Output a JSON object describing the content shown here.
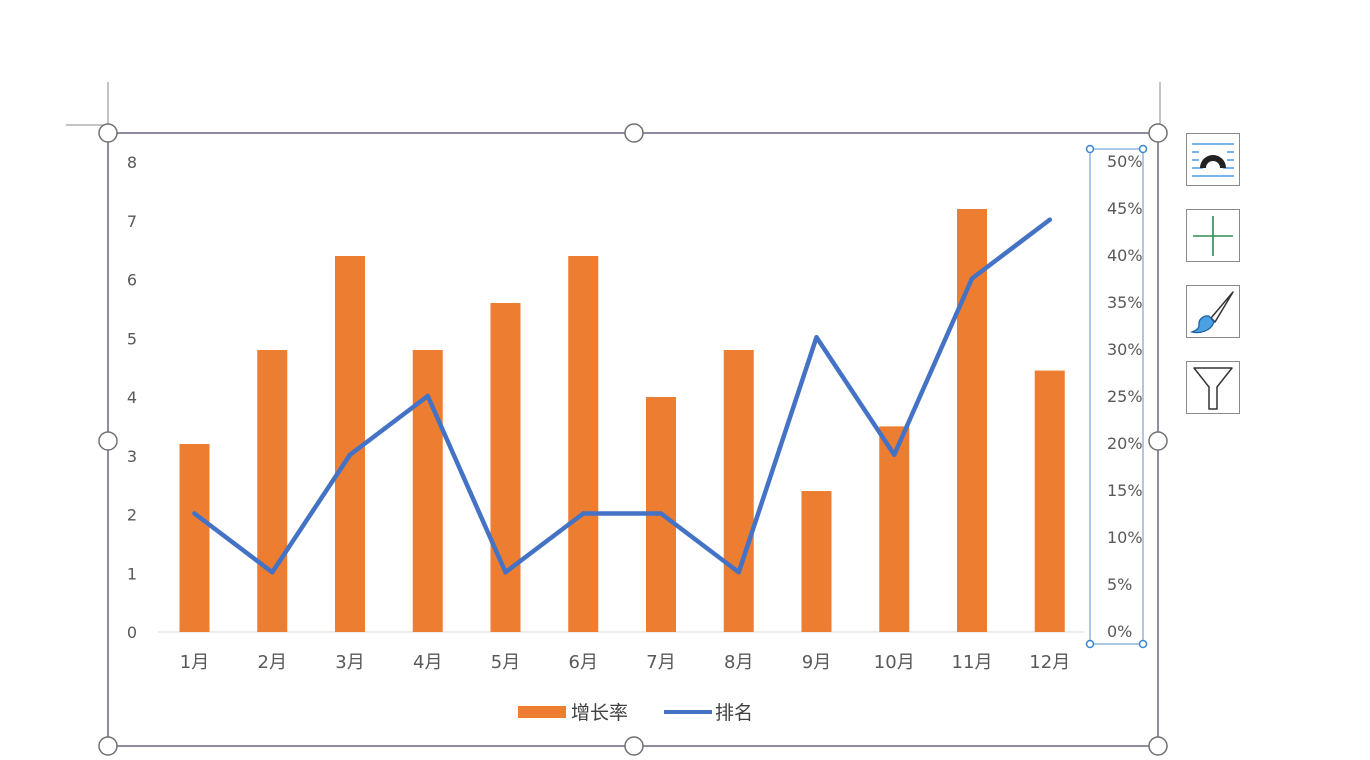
{
  "chart_data": {
    "type": "bar",
    "categories": [
      "1月",
      "2月",
      "3月",
      "4月",
      "5月",
      "6月",
      "7月",
      "8月",
      "9月",
      "10月",
      "11月",
      "12月"
    ],
    "series": [
      {
        "name": "增长率",
        "type": "bar",
        "axis": "left",
        "color": "#ED7D31",
        "values": [
          3.2,
          4.8,
          6.4,
          4.8,
          5.6,
          6.4,
          4.0,
          4.8,
          2.4,
          3.5,
          7.2,
          4.45
        ]
      },
      {
        "name": "排名",
        "type": "line",
        "axis": "right",
        "color": "#4472C4",
        "values": [
          12.5,
          6.25,
          18.75,
          25.0,
          6.25,
          12.5,
          12.5,
          6.25,
          31.25,
          18.75,
          37.5,
          43.75
        ]
      }
    ],
    "y_left": {
      "min": 0,
      "max": 8,
      "ticks": [
        "0",
        "1",
        "2",
        "3",
        "4",
        "5",
        "6",
        "7",
        "8"
      ]
    },
    "y_right": {
      "min": 0,
      "max": 50,
      "ticks": [
        "0%",
        "5%",
        "10%",
        "15%",
        "20%",
        "25%",
        "30%",
        "35%",
        "40%",
        "45%",
        "50%"
      ]
    },
    "legend_position": "bottom",
    "grid": false,
    "right_axis_selected": true
  },
  "tools": {
    "layout_icon": "chart-layout-icon",
    "elements_icon": "chart-elements-plus-icon",
    "styles_icon": "chart-styles-brush-icon",
    "filter_icon": "chart-filter-funnel-icon"
  },
  "colors": {
    "bar": "#ED7D31",
    "line": "#4472C4",
    "frame": "#6e6480",
    "axis_text": "#595959"
  }
}
